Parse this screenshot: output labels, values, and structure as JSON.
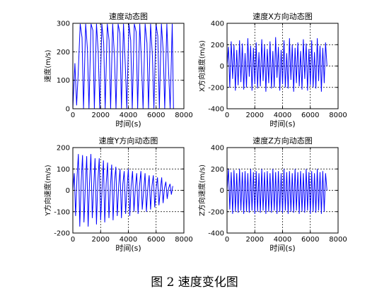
{
  "caption": "图 2  速度变化图",
  "chart_data": [
    {
      "type": "line",
      "title": "速度动态图",
      "xlabel": "时间(s)",
      "ylabel": "速度(m/s)",
      "xlim": [
        0,
        8000
      ],
      "ylim": [
        0,
        300
      ],
      "xticks": [
        0,
        2000,
        4000,
        6000,
        8000
      ],
      "yticks": [
        0,
        100,
        200,
        300
      ],
      "xtick_labels": [
        "0",
        "2000",
        "4000",
        "6000",
        "8000"
      ],
      "ytick_labels": [
        "0",
        "100",
        "200",
        "300"
      ],
      "grid": "dashed",
      "color": "#0000ff",
      "x": [
        0,
        150,
        270,
        380,
        530,
        660,
        770,
        920,
        1050,
        1160,
        1310,
        1440,
        1550,
        1700,
        1830,
        1940,
        2090,
        2220,
        2330,
        2480,
        2610,
        2720,
        2870,
        3000,
        3110,
        3260,
        3390,
        3500,
        3650,
        3780,
        3890,
        4040,
        4170,
        4280,
        4430,
        4560,
        4670,
        4820,
        4950,
        5060,
        5210,
        5340,
        5450,
        5600,
        5730,
        5840,
        5990,
        6120,
        6230,
        6380,
        6510,
        6620,
        6770,
        6900,
        7010,
        7160,
        7250
      ],
      "y": [
        0,
        160,
        12,
        120,
        298,
        250,
        0,
        298,
        210,
        0,
        298,
        275,
        0,
        298,
        198,
        0,
        298,
        230,
        0,
        298,
        240,
        0,
        298,
        180,
        0,
        298,
        265,
        0,
        298,
        150,
        0,
        298,
        240,
        0,
        298,
        270,
        0,
        298,
        160,
        0,
        298,
        230,
        0,
        298,
        185,
        0,
        298,
        255,
        0,
        298,
        200,
        0,
        298,
        130,
        0,
        298,
        0
      ]
    },
    {
      "type": "line",
      "title": "速度X方向动态图",
      "xlabel": "时间(s)",
      "ylabel": "X方向速度(m/s)",
      "xlim": [
        0,
        8000
      ],
      "ylim": [
        -400,
        400
      ],
      "xticks": [
        0,
        2000,
        4000,
        6000,
        8000
      ],
      "yticks": [
        -400,
        -200,
        0,
        200,
        400
      ],
      "xtick_labels": [
        "0",
        "2000",
        "4000",
        "6000",
        "8000"
      ],
      "ytick_labels": [
        "-400",
        "-200",
        "0",
        "200",
        "400"
      ],
      "grid": "dashed",
      "color": "#0000ff",
      "x": [
        0,
        100,
        200,
        300,
        400,
        500,
        600,
        700,
        800,
        900,
        1000,
        1100,
        1200,
        1300,
        1400,
        1500,
        1600,
        1700,
        1800,
        1900,
        2000,
        2100,
        2200,
        2300,
        2400,
        2500,
        2600,
        2700,
        2800,
        2900,
        3000,
        3100,
        3200,
        3300,
        3400,
        3500,
        3600,
        3700,
        3800,
        3900,
        4000,
        4100,
        4200,
        4300,
        4400,
        4500,
        4600,
        4700,
        4800,
        4900,
        5000,
        5100,
        5200,
        5300,
        5400,
        5500,
        5600,
        5700,
        5800,
        5900,
        6000,
        6100,
        6200,
        6300,
        6400,
        6500,
        6600,
        6700,
        6800,
        6900,
        7000,
        7100,
        7200
      ],
      "y": [
        0,
        180,
        -200,
        230,
        -120,
        200,
        -230,
        150,
        -180,
        240,
        -150,
        210,
        -220,
        120,
        -200,
        260,
        -100,
        190,
        -230,
        170,
        -170,
        220,
        -210,
        130,
        -190,
        250,
        -140,
        200,
        -240,
        160,
        -160,
        230,
        -210,
        140,
        -200,
        270,
        -110,
        180,
        -230,
        150,
        -170,
        240,
        -200,
        120,
        -210,
        260,
        -130,
        200,
        -240,
        170,
        -160,
        220,
        -190,
        140,
        -220,
        250,
        -120,
        210,
        -230,
        160,
        -180,
        240,
        -200,
        130,
        -210,
        260,
        -140,
        190,
        -240,
        170,
        -160,
        220,
        0
      ]
    },
    {
      "type": "line",
      "title": "速度Y方向动态图",
      "xlabel": "时间(s)",
      "ylabel": "Y方向速度(m/s)",
      "xlim": [
        0,
        8000
      ],
      "ylim": [
        -200,
        200
      ],
      "xticks": [
        0,
        2000,
        4000,
        6000,
        8000
      ],
      "yticks": [
        -200,
        -100,
        0,
        100,
        200
      ],
      "xtick_labels": [
        "0",
        "2000",
        "4000",
        "6000",
        "8000"
      ],
      "ytick_labels": [
        "-200",
        "-100",
        "0",
        "100",
        "200"
      ],
      "grid": "dashed",
      "color": "#0000ff",
      "x": [
        0,
        100,
        200,
        300,
        400,
        500,
        600,
        700,
        800,
        900,
        1000,
        1100,
        1200,
        1300,
        1400,
        1500,
        1600,
        1700,
        1800,
        1900,
        2000,
        2100,
        2200,
        2300,
        2400,
        2500,
        2600,
        2700,
        2800,
        2900,
        3000,
        3100,
        3200,
        3300,
        3400,
        3500,
        3600,
        3700,
        3800,
        3900,
        4000,
        4100,
        4200,
        4300,
        4400,
        4500,
        4600,
        4700,
        4800,
        4900,
        5000,
        5100,
        5200,
        5300,
        5400,
        5500,
        5600,
        5700,
        5800,
        5900,
        6000,
        6100,
        6200,
        6300,
        6400,
        6500,
        6600,
        6700,
        6800,
        6900,
        7000,
        7100,
        7200
      ],
      "y": [
        0,
        80,
        -120,
        60,
        170,
        -170,
        40,
        165,
        -150,
        20,
        160,
        -170,
        30,
        170,
        -130,
        10,
        150,
        -160,
        40,
        150,
        -140,
        0,
        140,
        -150,
        30,
        130,
        -130,
        10,
        120,
        -140,
        40,
        110,
        -120,
        20,
        100,
        -130,
        30,
        90,
        -110,
        10,
        100,
        -120,
        20,
        90,
        -100,
        10,
        80,
        -110,
        20,
        90,
        -90,
        0,
        80,
        -100,
        10,
        70,
        -90,
        20,
        70,
        -80,
        10,
        60,
        -70,
        0,
        60,
        -60,
        10,
        40,
        -40,
        10,
        30,
        -20,
        20
      ]
    },
    {
      "type": "line",
      "title": "速度Z方向动态图",
      "xlabel": "时间(s)",
      "ylabel": "Z方向速度(m/s)",
      "xlim": [
        0,
        8000
      ],
      "ylim": [
        -400,
        400
      ],
      "xticks": [
        0,
        2000,
        4000,
        6000,
        8000
      ],
      "yticks": [
        -400,
        -200,
        0,
        200,
        400
      ],
      "xtick_labels": [
        "0",
        "2000",
        "4000",
        "6000",
        "8000"
      ],
      "ytick_labels": [
        "-400",
        "-200",
        "0",
        "200",
        "400"
      ],
      "grid": "dashed",
      "color": "#0000ff",
      "x": [
        0,
        100,
        200,
        300,
        400,
        500,
        600,
        700,
        800,
        900,
        1000,
        1100,
        1200,
        1300,
        1400,
        1500,
        1600,
        1700,
        1800,
        1900,
        2000,
        2100,
        2200,
        2300,
        2400,
        2500,
        2600,
        2700,
        2800,
        2900,
        3000,
        3100,
        3200,
        3300,
        3400,
        3500,
        3600,
        3700,
        3800,
        3900,
        4000,
        4100,
        4200,
        4300,
        4400,
        4500,
        4600,
        4700,
        4800,
        4900,
        5000,
        5100,
        5200,
        5300,
        5400,
        5500,
        5600,
        5700,
        5800,
        5900,
        6000,
        6100,
        6200,
        6300,
        6400,
        6500,
        6600,
        6700,
        6800,
        6900,
        7000,
        7100,
        7200
      ],
      "y": [
        0,
        200,
        -180,
        170,
        -220,
        190,
        -200,
        160,
        -210,
        200,
        -190,
        170,
        -220,
        180,
        -200,
        160,
        -210,
        200,
        -190,
        170,
        -220,
        180,
        -200,
        160,
        -210,
        200,
        -190,
        170,
        -220,
        180,
        -200,
        160,
        -210,
        200,
        -190,
        170,
        -220,
        180,
        -200,
        160,
        -210,
        200,
        -190,
        170,
        -220,
        180,
        -200,
        160,
        -210,
        200,
        -190,
        170,
        -220,
        180,
        -200,
        160,
        -210,
        200,
        -190,
        170,
        -220,
        180,
        -200,
        160,
        -210,
        200,
        -190,
        170,
        -220,
        180,
        -200,
        160,
        0
      ]
    }
  ]
}
